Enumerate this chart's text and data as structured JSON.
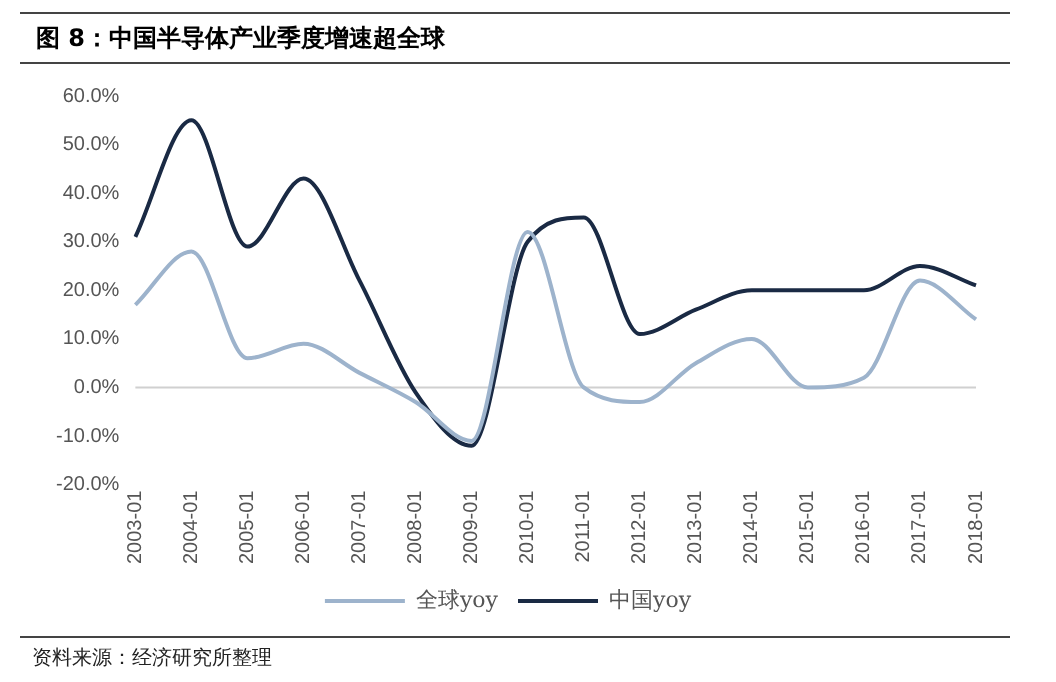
{
  "chart_data": {
    "type": "line",
    "title": "图 8：中国半导体产业季度增速超全球",
    "categories": [
      "2003-01",
      "2004-01",
      "2005-01",
      "2006-01",
      "2007-01",
      "2008-01",
      "2009-01",
      "2010-01",
      "2011-01",
      "2012-01",
      "2013-01",
      "2014-01",
      "2015-01",
      "2016-01",
      "2017-01",
      "2018-01"
    ],
    "series": [
      {
        "name": "全球yoy",
        "color": "#9db3cc",
        "values": [
          17,
          28,
          6,
          9,
          3,
          -3,
          -11,
          32,
          0,
          -3,
          5,
          10,
          0,
          2,
          22,
          14
        ]
      },
      {
        "name": "中国yoy",
        "color": "#1a2a44",
        "values": [
          31,
          55,
          29,
          43,
          22,
          -1,
          -12,
          30,
          35,
          11,
          16,
          20,
          20,
          20,
          25,
          21
        ]
      }
    ],
    "ylim": [
      -20,
      60
    ],
    "yticks": [
      {
        "value": -20,
        "label": "-20.0%"
      },
      {
        "value": -10,
        "label": "-10.0%"
      },
      {
        "value": 0,
        "label": "0.0%"
      },
      {
        "value": 10,
        "label": "10.0%"
      },
      {
        "value": 20,
        "label": "20.0%"
      },
      {
        "value": 30,
        "label": "30.0%"
      },
      {
        "value": 40,
        "label": "40.0%"
      },
      {
        "value": 50,
        "label": "50.0%"
      },
      {
        "value": 60,
        "label": "60.0%"
      }
    ],
    "grid": false,
    "ref_lines": [
      {
        "axis": "y",
        "value": 0,
        "color": "#d0d0d0"
      }
    ],
    "legend": "bottom",
    "marker": "none",
    "line_style": "solid",
    "annotations": [
      "资料来源：经济研究所整理"
    ]
  }
}
